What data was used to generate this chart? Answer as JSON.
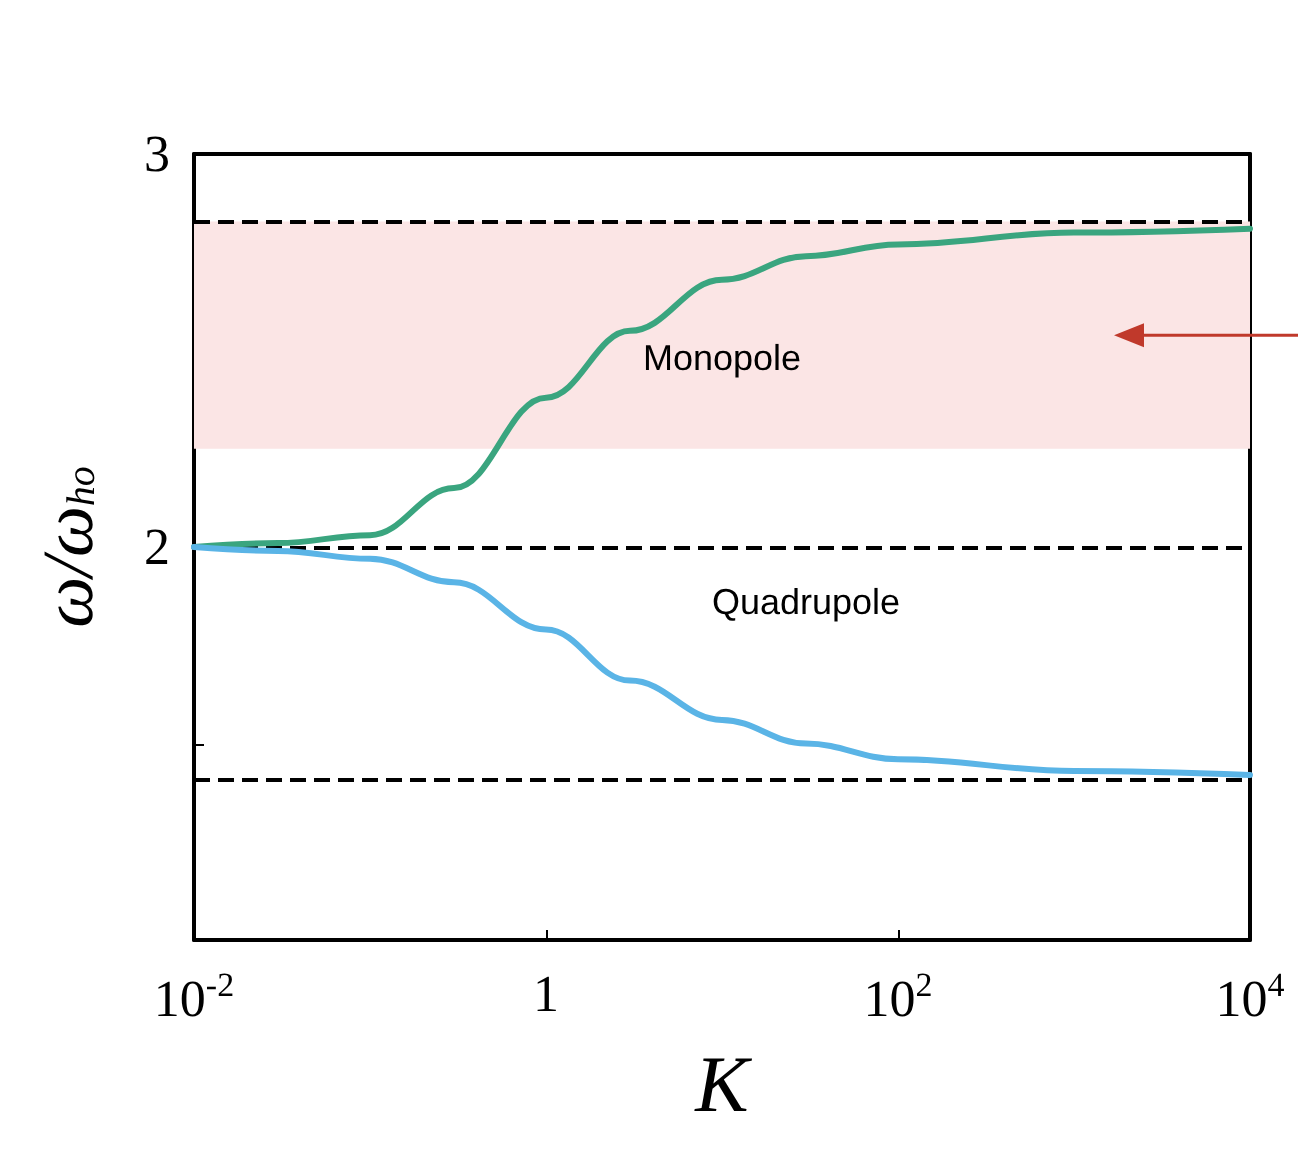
{
  "chart_data": {
    "type": "line",
    "xlabel": "K",
    "ylabel": "ω/ω$_{ho}$",
    "log": "x",
    "xlim": [
      0.01,
      10000
    ],
    "xticks": [
      {
        "value": 0.01,
        "label": "10$^{-2}$"
      },
      {
        "value": 1,
        "label": "1"
      },
      {
        "value": 100,
        "label": "10$^{2}$"
      },
      {
        "value": 10000,
        "label": "10$^{4}$"
      }
    ],
    "ylim": [
      1,
      3
    ],
    "yticks": [
      {
        "value": 1,
        "label": null
      },
      {
        "value": 1.5,
        "label": null
      },
      2,
      {
        "value": 2.5,
        "label": null
      },
      3
    ],
    "x": [
      0.01,
      0.03,
      0.1,
      0.3,
      1,
      3,
      10,
      30,
      100,
      1000,
      10000
    ],
    "series": [
      {
        "name": "Monopole",
        "color": "#3aa57f",
        "values": [
          2.0,
          2.01,
          2.03,
          2.15,
          2.38,
          2.55,
          2.68,
          2.74,
          2.77,
          2.8,
          2.81
        ]
      },
      {
        "name": "Quadrupole",
        "color": "#5ab4e6",
        "values": [
          2.0,
          1.99,
          1.97,
          1.91,
          1.79,
          1.66,
          1.56,
          1.5,
          1.46,
          1.43,
          1.42
        ]
      }
    ],
    "ref_lines": [
      {
        "axis": "y",
        "value": 2.828,
        "color": "#000000",
        "line_style": "dashed"
      },
      {
        "axis": "y",
        "value": 2,
        "color": "#000000",
        "line_style": "dashed"
      },
      {
        "axis": "y",
        "value": 1.414,
        "color": "#000000",
        "line_style": "dashed"
      }
    ],
    "bands": [
      {
        "axis": "y",
        "from": 2.25,
        "to": 2.828,
        "color": "#fbe5e5"
      }
    ],
    "grid": false,
    "legend": false,
    "line_style": "solid",
    "marker": "none"
  }
}
